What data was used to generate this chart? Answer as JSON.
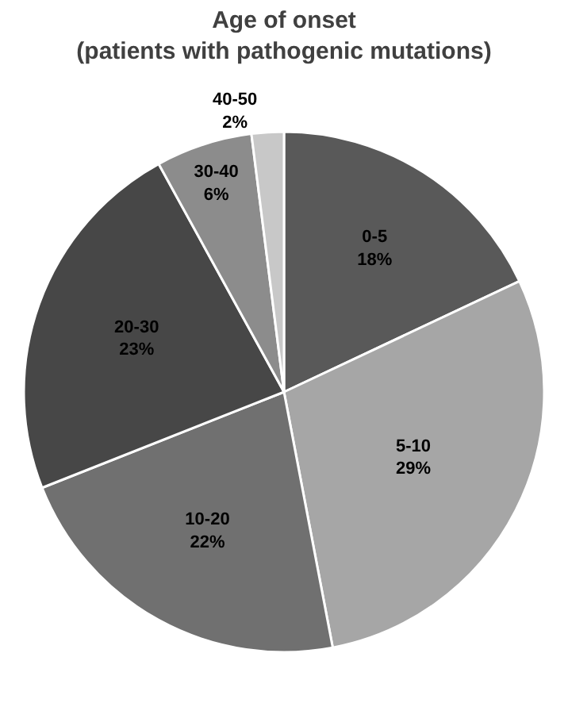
{
  "chart_data": {
    "type": "pie",
    "title": "Age of onset\n(patients with pathogenic mutations)",
    "categories": [
      "0-5",
      "5-10",
      "10-20",
      "20-30",
      "30-40",
      "40-50"
    ],
    "values": [
      18,
      29,
      22,
      23,
      6,
      2
    ],
    "value_labels": [
      "18%",
      "29%",
      "22%",
      "23%",
      "6%",
      "2%"
    ],
    "colors": [
      "#595959",
      "#a6a6a6",
      "#707070",
      "#474747",
      "#8c8c8c",
      "#c8c8c8"
    ],
    "legend": false
  }
}
